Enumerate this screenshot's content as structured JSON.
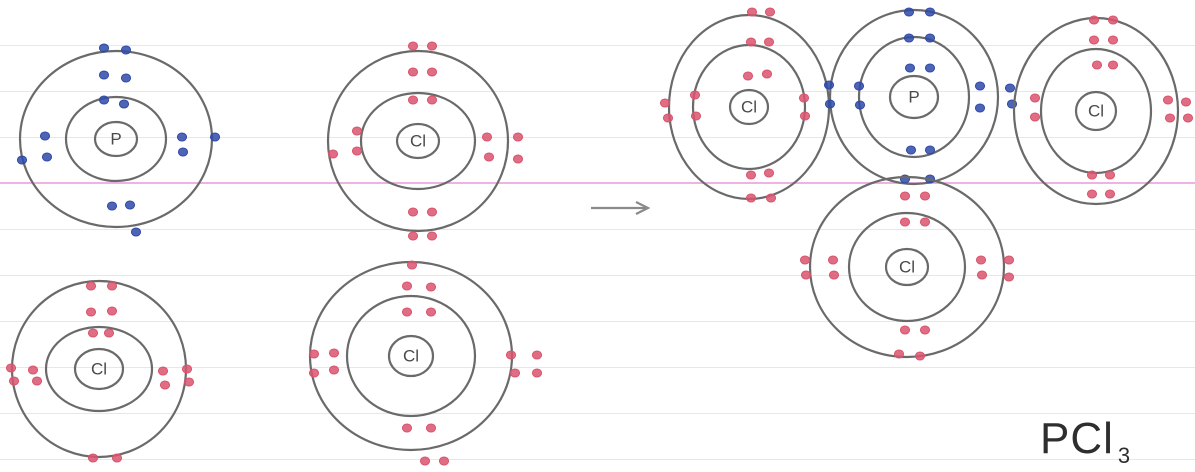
{
  "colors": {
    "phosphorus_electron": "#2f4aa8",
    "chlorine_electron": "#d9546d",
    "shell_stroke": "#6a6a6a",
    "rule_line": "#dfe8f6",
    "margin_line": "#f0b2e3"
  },
  "atoms_before": [
    {
      "symbol": "P",
      "electron_color": "phosphorus_electron"
    },
    {
      "symbol": "Cl",
      "electron_color": "chlorine_electron"
    },
    {
      "symbol": "Cl",
      "electron_color": "chlorine_electron"
    },
    {
      "symbol": "Cl",
      "electron_color": "chlorine_electron"
    }
  ],
  "arrow_icon": "right-arrow-icon",
  "molecule_atoms": [
    {
      "symbol": "Cl",
      "electron_color": "chlorine_electron"
    },
    {
      "symbol": "P",
      "electron_color": "phosphorus_electron"
    },
    {
      "symbol": "Cl",
      "electron_color": "chlorine_electron"
    },
    {
      "symbol": "Cl",
      "electron_color": "chlorine_electron"
    }
  ],
  "formula": {
    "main": "PCl",
    "subscript": "3"
  }
}
